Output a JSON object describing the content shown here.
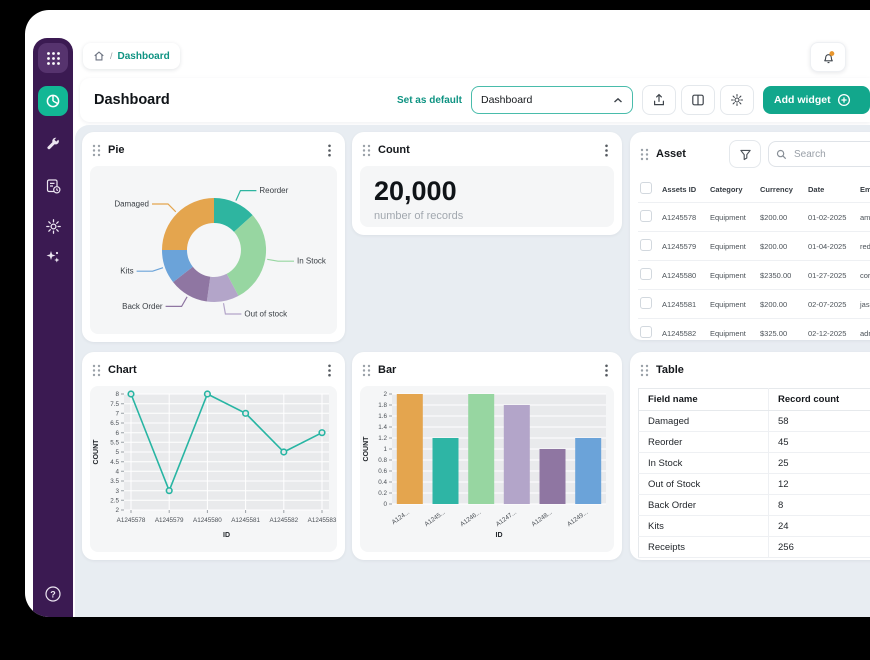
{
  "colors": {
    "sidebar_bg": "#3b1a52",
    "accent_teal": "#12a78c",
    "content_bg": "#e8edf2",
    "notification_dot": "#e8962e"
  },
  "sidebar": {
    "icons": [
      "grid-dots-icon",
      "pie-chart-icon",
      "wrench-icon",
      "document-clock-icon",
      "gear-icon",
      "sparkles-icon",
      "question-mark-icon"
    ],
    "active_icon": "pie-chart-icon"
  },
  "topbar": {
    "breadcrumb": {
      "home_icon": "home-icon",
      "separator": "/",
      "current": "Dashboard"
    },
    "notifications_icon": "bell-icon"
  },
  "header": {
    "title": "Dashboard",
    "set_as_default": "Set as default",
    "dropdown_value": "Dashboard",
    "add_widget": "Add widget"
  },
  "widgets": {
    "pie": {
      "title": "Pie"
    },
    "count": {
      "title": "Count",
      "value": "20,000",
      "caption": "number of records"
    },
    "asset": {
      "title": "Asset",
      "search_placeholder": "Search",
      "columns": [
        "Assets ID",
        "Category",
        "Currency",
        "Date",
        "Email"
      ],
      "rows": [
        [
          "A1245578",
          "Equipment",
          "$200.00",
          "01-02-2025",
          "amyx@email.com"
        ],
        [
          "A1245579",
          "Equipment",
          "$200.00",
          "01-04-2025",
          "redd@email.com"
        ],
        [
          "A1245580",
          "Equipment",
          "$2350.00",
          "01-27-2025",
          "cory@email.com"
        ],
        [
          "A1245581",
          "Equipment",
          "$200.00",
          "02-07-2025",
          "jason@email.com"
        ],
        [
          "A1245582",
          "Equipment",
          "$325.00",
          "02-12-2025",
          "adriana@email.com"
        ]
      ]
    },
    "chart": {
      "title": "Chart"
    },
    "bar": {
      "title": "Bar"
    },
    "table": {
      "title": "Table",
      "columns": [
        "Field name",
        "Record count"
      ],
      "rows": [
        [
          "Damaged",
          "58"
        ],
        [
          "Reorder",
          "45"
        ],
        [
          "In Stock",
          "25"
        ],
        [
          "Out of Stock",
          "12"
        ],
        [
          "Back Order",
          "8"
        ],
        [
          "Kits",
          "24"
        ],
        [
          "Receipts",
          "256"
        ]
      ]
    }
  },
  "chart_data": [
    {
      "name": "pie",
      "type": "pie",
      "title": "Pie",
      "donut": true,
      "start_angle_deg": 0,
      "labels": [
        "Reorder",
        "In Stock",
        "Out of stock",
        "Back Order",
        "Kits",
        "Damaged"
      ],
      "values": [
        13.3,
        28.9,
        10.0,
        12.2,
        10.6,
        25.0
      ],
      "colors": [
        "#2eb5a0",
        "#97d6a1",
        "#b3a5c9",
        "#8f76a2",
        "#6ba3d9",
        "#e4a54e"
      ],
      "legend_position": "callout-labels"
    },
    {
      "name": "chart",
      "type": "line",
      "title": "Chart",
      "x": [
        "A1245578",
        "A1245579",
        "A1245580",
        "A1245581",
        "A1245582",
        "A1245583"
      ],
      "values": [
        8,
        3,
        8,
        7,
        5,
        6
      ],
      "xlabel": "ID",
      "ylabel": "COUNT",
      "ylim": [
        2,
        8
      ],
      "ytick_step": 0.5,
      "color": "#28b5a3",
      "marker": "open-circle",
      "grid": true,
      "plot_bg": "#e9eaec"
    },
    {
      "name": "bar",
      "type": "bar",
      "title": "Bar",
      "categories": [
        "A124...",
        "A1245...",
        "A1246...",
        "A1247...",
        "A1248...",
        "A1249..."
      ],
      "values": [
        2,
        1.2,
        2,
        1.8,
        1,
        1.2
      ],
      "colors": [
        "#e4a54e",
        "#2eb5a5",
        "#97d6a1",
        "#b3a5c9",
        "#8f76a2",
        "#6ba3d9"
      ],
      "xlabel": "ID",
      "ylabel": "COUNT",
      "ylim": [
        0,
        2
      ],
      "ytick_step": 0.2,
      "grid": true,
      "plot_bg": "#e9eaec"
    }
  ]
}
